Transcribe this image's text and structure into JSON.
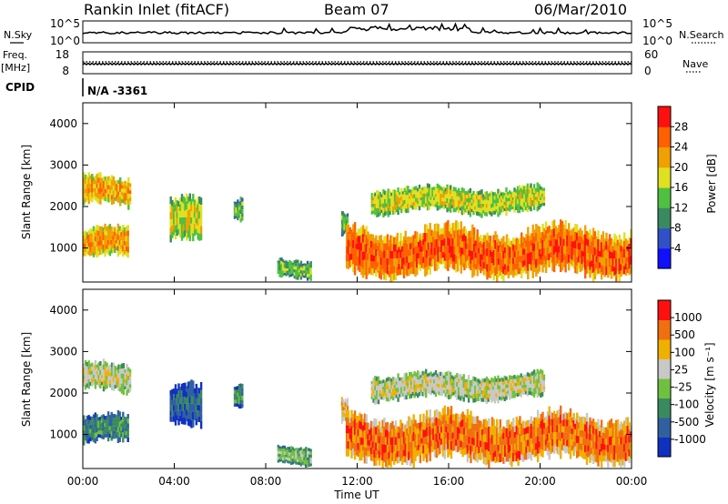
{
  "header": {
    "station": "Rankin Inlet (fitACF)",
    "beam": "Beam 07",
    "date": "06/Mar/2010"
  },
  "side_labels": {
    "nsky": "N.Sky",
    "nsearch": "N.Search",
    "freq": "Freq.",
    "freq_unit": "[MHz]",
    "nave": "Nave",
    "cpid": "CPID",
    "cpid_value": "N/A -3361"
  },
  "noise_axis": {
    "left": [
      "10^5",
      "10^0"
    ],
    "right": [
      "10^5",
      "10^0"
    ]
  },
  "freq_axis": {
    "left": [
      "18",
      "8"
    ],
    "right": [
      "60",
      "0"
    ]
  },
  "chart_data": [
    {
      "type": "heatmap",
      "name": "power",
      "ylabel": "Slant Range [km]",
      "xlabel": "",
      "ylim": [
        180,
        4500
      ],
      "yticks": [
        1000,
        2000,
        3000,
        4000
      ],
      "colorbar_label": "Power [dB]",
      "colorbar_ticks": [
        "28",
        "24",
        "20",
        "16",
        "12",
        "8",
        "4"
      ],
      "colors": [
        "#1010ff",
        "#3050c8",
        "#3a8a60",
        "#4fc040",
        "#e0e020",
        "#f0a000",
        "#ff6000",
        "#ff1010"
      ],
      "echo_regions": [
        {
          "t0": 0.0,
          "t1": 2.0,
          "r0": 700,
          "r1": 1500,
          "level": 5
        },
        {
          "t0": 0.0,
          "t1": 2.1,
          "r0": 1950,
          "r1": 2750,
          "level": 5
        },
        {
          "t0": 3.8,
          "t1": 5.2,
          "r0": 1000,
          "r1": 2200,
          "level": 4
        },
        {
          "t0": 6.6,
          "t1": 7.0,
          "r0": 1650,
          "r1": 2300,
          "level": 3
        },
        {
          "t0": 8.5,
          "t1": 10.0,
          "r0": 250,
          "r1": 750,
          "level": 3
        },
        {
          "t0": 11.3,
          "t1": 11.6,
          "r0": 1200,
          "r1": 1850,
          "level": 3
        },
        {
          "t0": 11.5,
          "t1": 24.0,
          "r0": 250,
          "r1": 1550,
          "level": 6
        },
        {
          "t0": 12.6,
          "t1": 20.2,
          "r0": 1800,
          "r1": 2500,
          "level": 4
        }
      ]
    },
    {
      "type": "heatmap",
      "name": "velocity",
      "ylabel": "Slant Range [km]",
      "xlabel": "Time UT",
      "ylim": [
        180,
        4500
      ],
      "yticks": [
        1000,
        2000,
        3000,
        4000
      ],
      "xticks": [
        "00:00",
        "04:00",
        "08:00",
        "12:00",
        "16:00",
        "20:00",
        "00:00"
      ],
      "colorbar_label": "Velocity [m s⁻¹]",
      "colorbar_ticks": [
        "1000",
        "500",
        "100",
        "25",
        "-25",
        "-100",
        "-500",
        "-1000"
      ],
      "colors": [
        "#1030c0",
        "#3060a0",
        "#3a8a60",
        "#70c040",
        "#c8c8c8",
        "#f0b000",
        "#f07010",
        "#ff1010"
      ],
      "echo_regions": [
        {
          "t0": 0.0,
          "t1": 2.0,
          "r0": 700,
          "r1": 1500,
          "level": 2
        },
        {
          "t0": 0.0,
          "t1": 2.1,
          "r0": 1950,
          "r1": 2750,
          "level": 4
        },
        {
          "t0": 3.8,
          "t1": 5.2,
          "r0": 1000,
          "r1": 2200,
          "level": 1
        },
        {
          "t0": 6.6,
          "t1": 7.0,
          "r0": 1650,
          "r1": 2300,
          "level": 2
        },
        {
          "t0": 8.5,
          "t1": 10.0,
          "r0": 250,
          "r1": 750,
          "level": 3
        },
        {
          "t0": 11.3,
          "t1": 11.6,
          "r0": 1200,
          "r1": 1850,
          "level": 5
        },
        {
          "t0": 11.5,
          "t1": 24.0,
          "r0": 250,
          "r1": 1550,
          "level": 6
        },
        {
          "t0": 12.6,
          "t1": 20.2,
          "r0": 1800,
          "r1": 2500,
          "level": 4
        }
      ]
    }
  ]
}
